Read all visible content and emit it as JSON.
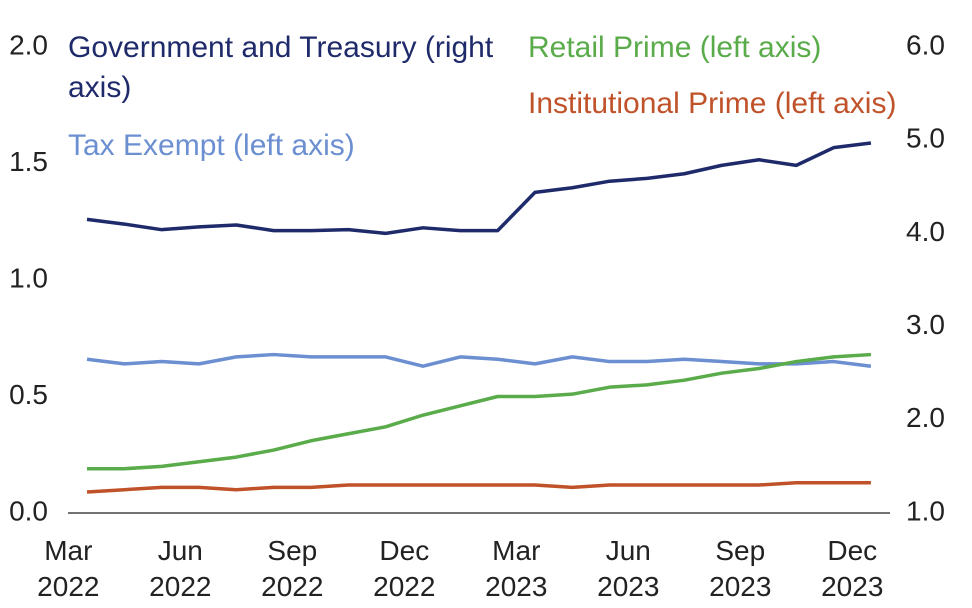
{
  "chart_data": {
    "type": "line",
    "categories": [
      "Mar 2022",
      null,
      null,
      "Jun 2022",
      null,
      null,
      "Sep 2022",
      null,
      null,
      "Dec 2022",
      null,
      null,
      "Mar 2023",
      null,
      null,
      "Jun 2023",
      null,
      null,
      "Sep 2023",
      null,
      null,
      "Dec 2023"
    ],
    "series": [
      {
        "name": "Government and Treasury (right axis)",
        "color": "#1f2a6b",
        "axis": "y2",
        "values": [
          4.15,
          4.1,
          4.04,
          4.07,
          4.09,
          4.03,
          4.03,
          4.04,
          4.0,
          4.06,
          4.03,
          4.03,
          4.44,
          4.49,
          4.56,
          4.59,
          4.64,
          4.73,
          4.79,
          4.73,
          4.92,
          4.97
        ]
      },
      {
        "name": "Tax Exempt (left axis)",
        "color": "#6b8fd1",
        "values": [
          0.66,
          0.64,
          0.65,
          0.64,
          0.67,
          0.68,
          0.67,
          0.67,
          0.67,
          0.63,
          0.67,
          0.66,
          0.64,
          0.67,
          0.65,
          0.65,
          0.66,
          0.65,
          0.64,
          0.64,
          0.65,
          0.63
        ]
      },
      {
        "name": "Retail Prime (left axis)",
        "color": "#5aab4a",
        "values": [
          0.19,
          0.19,
          0.2,
          0.22,
          0.24,
          0.27,
          0.31,
          0.34,
          0.37,
          0.42,
          0.46,
          0.5,
          0.5,
          0.51,
          0.54,
          0.55,
          0.57,
          0.6,
          0.62,
          0.65,
          0.67,
          0.68
        ]
      },
      {
        "name": "Institutional Prime (left axis)",
        "color": "#c0522a",
        "values": [
          0.09,
          0.1,
          0.11,
          0.11,
          0.1,
          0.11,
          0.11,
          0.12,
          0.12,
          0.12,
          0.12,
          0.12,
          0.12,
          0.11,
          0.12,
          0.12,
          0.12,
          0.12,
          0.12,
          0.13,
          0.13,
          0.13
        ]
      }
    ],
    "ylim": [
      0,
      2
    ],
    "yticks": [
      {
        "value": 0,
        "label": "0.0"
      },
      {
        "value": 0.5,
        "label": "0.5"
      },
      {
        "value": 1,
        "label": "1.0"
      },
      {
        "value": 1.5,
        "label": "1.5"
      },
      {
        "value": 2,
        "label": "2.0"
      }
    ],
    "y2lim": [
      1,
      6
    ],
    "y2ticks": [
      {
        "value": 1,
        "label": "1.0"
      },
      {
        "value": 2,
        "label": "2.0"
      },
      {
        "value": 3,
        "label": "3.0"
      },
      {
        "value": 4,
        "label": "4.0"
      },
      {
        "value": 5,
        "label": "5.0"
      },
      {
        "value": 6,
        "label": "6.0"
      }
    ],
    "grid": false
  }
}
